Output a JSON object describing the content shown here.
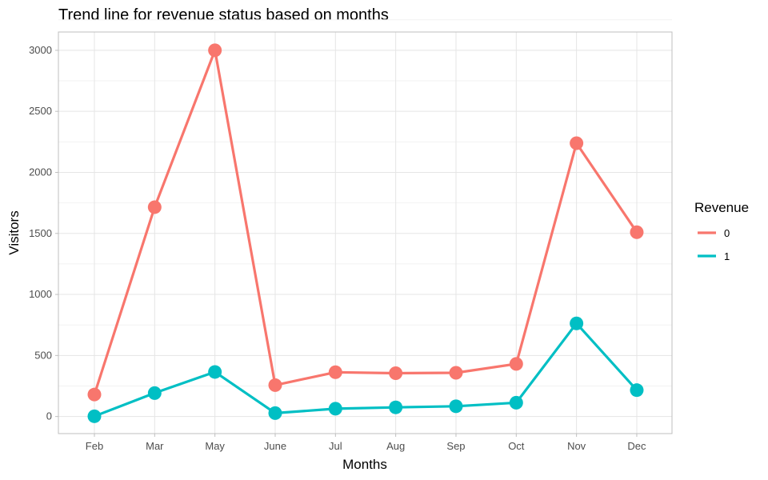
{
  "chart_data": {
    "type": "line",
    "title": "Trend line for revenue status based on months",
    "xlabel": "Months",
    "ylabel": "Visitors",
    "categories": [
      "Feb",
      "Mar",
      "May",
      "June",
      "Jul",
      "Aug",
      "Sep",
      "Oct",
      "Nov",
      "Dec"
    ],
    "yticks": [
      0,
      500,
      1000,
      1500,
      2000,
      2500,
      3000
    ],
    "ylim": [
      -140,
      3150
    ],
    "grid": true,
    "legend": {
      "title": "Revenue",
      "position": "right"
    },
    "series": [
      {
        "name": "0",
        "color": "#F8766D",
        "values": [
          180,
          1715,
          3000,
          257,
          363,
          355,
          358,
          431,
          2239,
          1510
        ]
      },
      {
        "name": "1",
        "color": "#00BFC4",
        "values": [
          2,
          192,
          365,
          28,
          64,
          75,
          84,
          113,
          763,
          216
        ]
      }
    ]
  }
}
